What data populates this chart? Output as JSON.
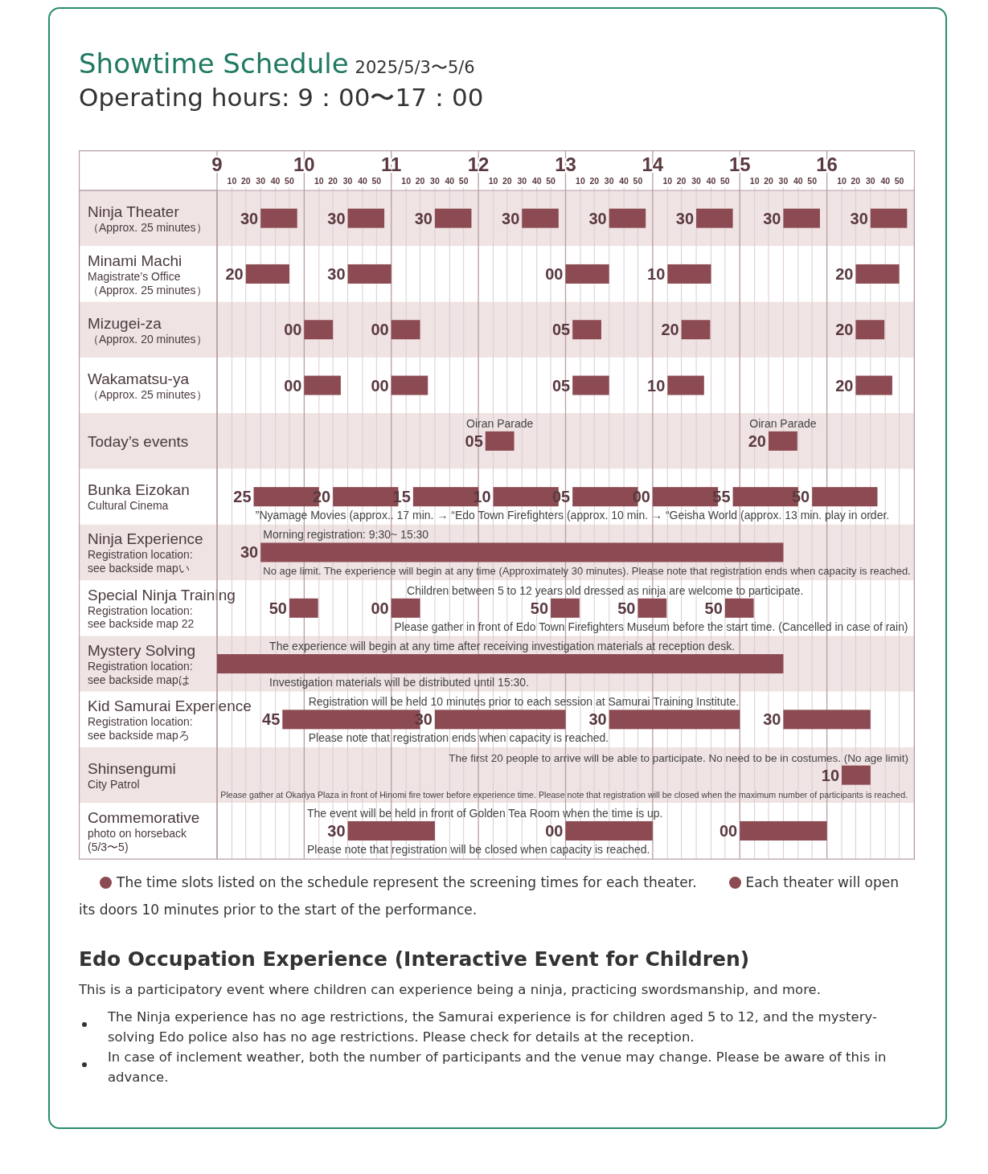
{
  "chart_data": {
    "type": "bar",
    "orientation": "horizontal",
    "title": "Showtime Schedule",
    "subtitle": "2025/5/3〜5/6",
    "categories": [
      "Ninja Theater\n（Approx. 25 minutes）",
      "Minami Machi\nMagistrate’s Office\n（Approx. 25 minutes）",
      "Mizugei-za\n（Approx. 20 minutes）",
      "Wakamatsu-ya\n（Approx. 25 minutes）",
      "Today’s events",
      "Bunka Eizokan\nCultural Cinema",
      "Ninja Experience\nRegistration location:\nsee backside mapい",
      "Special Ninja Training\nRegistration location:\nsee backside map 22",
      "Mystery Solving\nRegistration location:\nsee backside mapは",
      "Kid Samurai Experience\nRegistration location:\nsee backside mapろ",
      "Shinsengumi\nCity Patrol",
      "Commemorative\nphoto on horseback\n(5/3〜5)"
    ],
    "xlim": [
      9,
      17
    ],
    "xticks": [
      9,
      {
        "value": 9.17,
        "label": null
      },
      {
        "value": 9.33,
        "label": null
      },
      {
        "value": 9.5,
        "label": null
      },
      {
        "value": 9.67,
        "label": null
      },
      {
        "value": 9.83,
        "label": null
      },
      10,
      {
        "value": 10.17,
        "label": null
      },
      {
        "value": 10.33,
        "label": null
      },
      {
        "value": 10.5,
        "label": null
      },
      {
        "value": 10.67,
        "label": null
      },
      {
        "value": 10.83,
        "label": null
      },
      11,
      {
        "value": 11.17,
        "label": null
      },
      {
        "value": 11.33,
        "label": null
      },
      {
        "value": 11.5,
        "label": null
      },
      {
        "value": 11.67,
        "label": null
      },
      {
        "value": 11.83,
        "label": null
      },
      12,
      {
        "value": 12.17,
        "label": null
      },
      {
        "value": 12.33,
        "label": null
      },
      {
        "value": 12.5,
        "label": null
      },
      {
        "value": 12.67,
        "label": null
      },
      {
        "value": 12.83,
        "label": null
      },
      13,
      {
        "value": 13.17,
        "label": null
      },
      {
        "value": 13.33,
        "label": null
      },
      {
        "value": 13.5,
        "label": null
      },
      {
        "value": 13.67,
        "label": null
      },
      {
        "value": 13.83,
        "label": null
      },
      14,
      {
        "value": 14.17,
        "label": null
      },
      {
        "value": 14.33,
        "label": null
      },
      {
        "value": 14.5,
        "label": null
      },
      {
        "value": 14.67,
        "label": null
      },
      {
        "value": 14.83,
        "label": null
      },
      15,
      {
        "value": 15.17,
        "label": null
      },
      {
        "value": 15.33,
        "label": null
      },
      {
        "value": 15.5,
        "label": null
      },
      {
        "value": 15.67,
        "label": null
      },
      {
        "value": 15.83,
        "label": null
      },
      16,
      {
        "value": 16.17,
        "label": null
      },
      {
        "value": 16.33,
        "label": null
      },
      {
        "value": 16.5,
        "label": null
      },
      {
        "value": 16.67,
        "label": null
      },
      {
        "value": 16.83,
        "label": null
      },
      {
        "value": 17,
        "label": null
      }
    ],
    "grid": "x",
    "series": [
      {
        "color": "#8c4a52",
        "base": [
          9.5,
          9.33,
          10,
          10,
          12.08,
          9.42,
          9.5,
          9.83,
          9,
          9.75,
          16.17,
          10.5
        ],
        "values": [
          0.42,
          0.5,
          0.33,
          0.42,
          0.33,
          0.75,
          6,
          0.33,
          6.5,
          1.58,
          0.33,
          1
        ]
      },
      {
        "color": "#8c4a52",
        "base": [
          10.5,
          10.5,
          11,
          11,
          15.33,
          10.33,
          null,
          11,
          null,
          11.5,
          null,
          13
        ],
        "values": [
          0.42,
          0.5,
          0.33,
          0.42,
          0.33,
          0.75,
          null,
          0.33,
          null,
          1.5,
          null,
          1
        ]
      },
      {
        "color": "#8c4a52",
        "base": [
          11.5,
          13,
          13.08,
          13.08,
          null,
          11.25,
          null,
          12.83,
          null,
          13.5,
          null,
          15
        ],
        "values": [
          0.42,
          0.5,
          0.33,
          0.42,
          null,
          0.75,
          null,
          0.33,
          null,
          1.5,
          null,
          1
        ]
      },
      {
        "color": "#8c4a52",
        "base": [
          12.5,
          14.17,
          14.33,
          14.17,
          null,
          12.17,
          null,
          13.83,
          null,
          15.5,
          null,
          null
        ],
        "values": [
          0.42,
          0.5,
          0.33,
          0.42,
          null,
          0.75,
          null,
          0.33,
          null,
          1,
          null,
          null
        ]
      },
      {
        "color": "#8c4a52",
        "base": [
          13.5,
          16.33,
          16.33,
          16.33,
          null,
          13.08,
          null,
          14.83,
          null,
          null,
          null,
          null
        ],
        "values": [
          0.42,
          0.5,
          0.33,
          0.42,
          null,
          0.75,
          null,
          0.33,
          null,
          null,
          null,
          null
        ]
      },
      {
        "color": "#8c4a52",
        "base": [
          14.5,
          null,
          null,
          null,
          null,
          14,
          null,
          null,
          null,
          null,
          null,
          null
        ],
        "values": [
          0.42,
          null,
          null,
          null,
          null,
          0.75,
          null,
          null,
          null,
          null,
          null,
          null
        ]
      },
      {
        "color": "#8c4a52",
        "base": [
          15.5,
          null,
          null,
          null,
          null,
          14.92,
          null,
          null,
          null,
          null,
          null,
          null
        ],
        "values": [
          0.42,
          null,
          null,
          null,
          null,
          0.75,
          null,
          null,
          null,
          null,
          null,
          null
        ]
      },
      {
        "color": "#8c4a52",
        "base": [
          16.5,
          null,
          null,
          null,
          null,
          15.83,
          null,
          null,
          null,
          null,
          null,
          null
        ],
        "values": [
          0.42,
          null,
          null,
          null,
          null,
          0.75,
          null,
          null,
          null,
          null,
          null,
          null
        ]
      }
    ],
    "annotations": [
      "Operating hours: 9：00〜17：00",
      "The time slots listed on the schedule represent the screening times for each theater.",
      "Each theater will open its doors 10 minutes prior to the start of the performance.",
      "Edo Occupation Experience (Interactive Event for Children)",
      "This is a participatory event where children can experience being a ninja, practicing swordsmanship, and more.",
      "The Ninja experience has no age restrictions, the Samurai experience is for children aged 5 to 12, and the mystery-solving Edo police also has no age restrictions. Please check for details at the reception.",
      "In case of inclement weather, both the number of participants and the venue may change. Please be aware of this in advance.",
      "”Nyamage Movies (approx.. 17 min. → “Edo Town Firefighters (approx. 10 min. → “Geisha World (approx. 13 min. play in order.",
      "Morning registration: 9:30~ 15:30",
      "No age limit. The experience will begin at any time (Approximately 30 minutes). Please note that registration ends when capacity is reached.",
      "Children between 5 to 12 years old dressed as ninja are welcome to participate.",
      "Please gather in front of Edo Town Firefighters Museum before the start time. (Cancelled in case of rain)",
      "The experience will begin at any time after receiving investigation materials at reception desk.",
      "Investigation materials will be distributed until 15:30.",
      "Registration will be held 10 minutes prior to each session at Samurai Training Institute.",
      "Please note that registration ends when capacity is reached.",
      "The first 20 people to arrive will be able to participate. No need to be in costumes. (No age limit)",
      "Please gather at Okariya Plaza in front of Hinomi fire tower before experience time. Please note that registration will be closed when the maximum number of participants is reached.",
      "The event will be held in front of Golden Tea Room when the time is up.",
      "Please note that registration will be closed when capacity is reached.",
      "10",
      "20",
      "30",
      "40",
      "50",
      "10",
      "20",
      "30",
      "40",
      "50",
      "10",
      "20",
      "30",
      "40",
      "50",
      "10",
      "20",
      "30",
      "40",
      "50",
      "10",
      "20",
      "30",
      "40",
      "50",
      "10",
      "20",
      "30",
      "40",
      "50",
      "10",
      "20",
      "30",
      "40",
      "50",
      "10",
      "20",
      "30",
      "40",
      "50",
      {
        "text": "30",
        "x": 9.5,
        "y": "Ninja Theater\n（Approx. 25 minutes）"
      },
      {
        "text": "30",
        "x": 10.5,
        "y": "Ninja Theater\n（Approx. 25 minutes）"
      },
      {
        "text": "30",
        "x": 11.5,
        "y": "Ninja Theater\n（Approx. 25 minutes）"
      },
      {
        "text": "30",
        "x": 12.5,
        "y": "Ninja Theater\n（Approx. 25 minutes）"
      },
      {
        "text": "30",
        "x": 13.5,
        "y": "Ninja Theater\n（Approx. 25 minutes）"
      },
      {
        "text": "30",
        "x": 14.5,
        "y": "Ninja Theater\n（Approx. 25 minutes）"
      },
      {
        "text": "30",
        "x": 15.5,
        "y": "Ninja Theater\n（Approx. 25 minutes）"
      },
      {
        "text": "30",
        "x": 16.5,
        "y": "Ninja Theater\n（Approx. 25 minutes）"
      },
      {
        "text": "20",
        "x": 9.33,
        "y": "Minami Machi\nMagistrate’s Office\n（Approx. 25 minutes）"
      },
      {
        "text": "30",
        "x": 10.5,
        "y": "Minami Machi\nMagistrate’s Office\n（Approx. 25 minutes）"
      },
      {
        "text": "00",
        "x": 13,
        "y": "Minami Machi\nMagistrate’s Office\n（Approx. 25 minutes）"
      },
      {
        "text": "10",
        "x": 14.17,
        "y": "Minami Machi\nMagistrate’s Office\n（Approx. 25 minutes）"
      },
      {
        "text": "20",
        "x": 16.33,
        "y": "Minami Machi\nMagistrate’s Office\n（Approx. 25 minutes）"
      },
      {
        "text": "00",
        "x": 10,
        "y": "Mizugei-za\n（Approx. 20 minutes）"
      },
      {
        "text": "00",
        "x": 11,
        "y": "Mizugei-za\n（Approx. 20 minutes）"
      },
      {
        "text": "05",
        "x": 13.08,
        "y": "Mizugei-za\n（Approx. 20 minutes）"
      },
      {
        "text": "20",
        "x": 14.33,
        "y": "Mizugei-za\n（Approx. 20 minutes）"
      },
      {
        "text": "20",
        "x": 16.33,
        "y": "Mizugei-za\n（Approx. 20 minutes）"
      },
      {
        "text": "00",
        "x": 10,
        "y": "Wakamatsu-ya\n（Approx. 25 minutes）"
      },
      {
        "text": "00",
        "x": 11,
        "y": "Wakamatsu-ya\n（Approx. 25 minutes）"
      },
      {
        "text": "05",
        "x": 13.08,
        "y": "Wakamatsu-ya\n（Approx. 25 minutes）"
      },
      {
        "text": "10",
        "x": 14.17,
        "y": "Wakamatsu-ya\n（Approx. 25 minutes）"
      },
      {
        "text": "20",
        "x": 16.33,
        "y": "Wakamatsu-ya\n（Approx. 25 minutes）"
      },
      {
        "text": "05",
        "x": 12.08,
        "y": "Today’s events"
      },
      {
        "text": "Oiran Parade",
        "x": 12.08,
        "y": "Today’s events"
      },
      {
        "text": "20",
        "x": 15.33,
        "y": "Today’s events"
      },
      {
        "text": "Oiran Parade",
        "x": 15.33,
        "y": "Today’s events"
      },
      {
        "text": "25",
        "x": 9.42,
        "y": "Bunka Eizokan\nCultural Cinema"
      },
      {
        "text": "20",
        "x": 10.33,
        "y": "Bunka Eizokan\nCultural Cinema"
      },
      {
        "text": "15",
        "x": 11.25,
        "y": "Bunka Eizokan\nCultural Cinema"
      },
      {
        "text": "10",
        "x": 12.17,
        "y": "Bunka Eizokan\nCultural Cinema"
      },
      {
        "text": "05",
        "x": 13.08,
        "y": "Bunka Eizokan\nCultural Cinema"
      },
      {
        "text": "00",
        "x": 14,
        "y": "Bunka Eizokan\nCultural Cinema"
      },
      {
        "text": "55",
        "x": 14.92,
        "y": "Bunka Eizokan\nCultural Cinema"
      },
      {
        "text": "50",
        "x": 15.83,
        "y": "Bunka Eizokan\nCultural Cinema"
      },
      {
        "text": "30",
        "x": 9.5,
        "y": "Ninja Experience\nRegistration location:\nsee backside mapい"
      },
      {
        "text": "50",
        "x": 9.83,
        "y": "Special Ninja Training\nRegistration location:\nsee backside map 22"
      },
      {
        "text": "00",
        "x": 11,
        "y": "Special Ninja Training\nRegistration location:\nsee backside map 22"
      },
      {
        "text": "50",
        "x": 12.83,
        "y": "Special Ninja Training\nRegistration location:\nsee backside map 22"
      },
      {
        "text": "50",
        "x": 13.83,
        "y": "Special Ninja Training\nRegistration location:\nsee backside map 22"
      },
      {
        "text": "50",
        "x": 14.83,
        "y": "Special Ninja Training\nRegistration location:\nsee backside map 22"
      },
      {
        "text": "45",
        "x": 9.75,
        "y": "Kid Samurai Experience\nRegistration location:\nsee backside mapろ"
      },
      {
        "text": "30",
        "x": 11.5,
        "y": "Kid Samurai Experience\nRegistration location:\nsee backside mapろ"
      },
      {
        "text": "30",
        "x": 13.5,
        "y": "Kid Samurai Experience\nRegistration location:\nsee backside mapろ"
      },
      {
        "text": "30",
        "x": 15.5,
        "y": "Kid Samurai Experience\nRegistration location:\nsee backside mapろ"
      },
      {
        "text": "10",
        "x": 16.17,
        "y": "Shinsengumi\nCity Patrol"
      },
      {
        "text": "30",
        "x": 10.5,
        "y": "Commemorative\nphoto on horseback\n(5/3〜5)"
      },
      {
        "text": "00",
        "x": 13,
        "y": "Commemorative\nphoto on horseback\n(5/3〜5)"
      },
      {
        "text": "00",
        "x": 15,
        "y": "Commemorative\nphoto on horseback\n(5/3〜5)"
      }
    ]
  }
}
